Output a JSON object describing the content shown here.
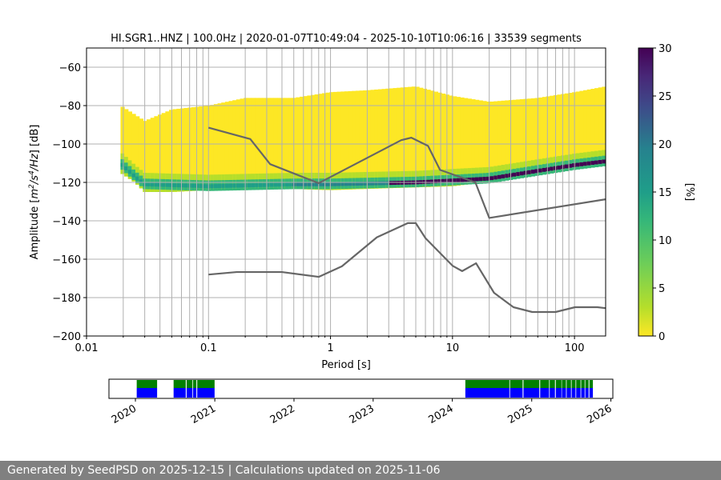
{
  "chart_data": [
    {
      "type": "heatmap",
      "title": "HI.SGR1..HNZ | 100.0Hz | 2020-01-07T10:49:04 - 2025-10-10T10:06:16 | 33539 segments",
      "xlabel": "Period [s]",
      "ylabel_parts": [
        "Amplitude [",
        "m",
        "2",
        "/",
        "s",
        "4",
        "/Hz",
        "] [dB]"
      ],
      "xscale": "log",
      "xlim": [
        0.01,
        180
      ],
      "ylim": [
        -200,
        -50
      ],
      "x_ticks": [
        0.01,
        0.1,
        1,
        10,
        100
      ],
      "x_tick_labels": [
        "0.01",
        "0.1",
        "1",
        "10",
        "100"
      ],
      "y_ticks": [
        -200,
        -180,
        -160,
        -140,
        -120,
        -100,
        -80,
        -60
      ],
      "y_tick_labels": [
        "−200",
        "−180",
        "−160",
        "−140",
        "−120",
        "−100",
        "−80",
        "−60"
      ],
      "grid": true,
      "colormap": "viridis_r",
      "colorbar": {
        "label": "[%]",
        "range": [
          0,
          30
        ],
        "ticks": [
          0,
          5,
          10,
          15,
          20,
          25,
          30
        ],
        "tick_labels": [
          "0",
          "5",
          "10",
          "15",
          "20",
          "25",
          "30"
        ]
      },
      "psd_density": {
        "period_start": 0.019,
        "period_end": 180,
        "upper_bound_db": [
          [
            0.019,
            -80
          ],
          [
            0.03,
            -88
          ],
          [
            0.05,
            -82
          ],
          [
            0.1,
            -80
          ],
          [
            0.2,
            -76
          ],
          [
            0.5,
            -76
          ],
          [
            1,
            -73
          ],
          [
            2,
            -72
          ],
          [
            5,
            -70
          ],
          [
            10,
            -75
          ],
          [
            20,
            -78
          ],
          [
            50,
            -76
          ],
          [
            100,
            -73
          ],
          [
            180,
            -70
          ]
        ],
        "lower_bound_db": [
          [
            0.019,
            -115
          ],
          [
            0.025,
            -120
          ],
          [
            0.03,
            -125
          ],
          [
            0.05,
            -125
          ],
          [
            0.1,
            -124
          ],
          [
            0.3,
            -123
          ],
          [
            1,
            -124
          ],
          [
            3,
            -123
          ],
          [
            10,
            -122
          ],
          [
            30,
            -118
          ],
          [
            100,
            -113
          ],
          [
            180,
            -110
          ]
        ],
        "mode_db": [
          [
            0.019,
            -110
          ],
          [
            0.025,
            -117
          ],
          [
            0.03,
            -121
          ],
          [
            0.1,
            -122
          ],
          [
            0.5,
            -121
          ],
          [
            1,
            -121
          ],
          [
            5,
            -120
          ],
          [
            10,
            -119
          ],
          [
            20,
            -118
          ],
          [
            50,
            -114
          ],
          [
            100,
            -111
          ],
          [
            180,
            -109
          ]
        ]
      },
      "series": [
        {
          "values_xy": [
            [
              0.1,
              -91.5
            ],
            [
              0.22,
              -97.4
            ],
            [
              0.32,
              -110.5
            ],
            [
              0.8,
              -120.4
            ],
            [
              3.8,
              -98.0
            ],
            [
              4.6,
              -96.7
            ],
            [
              6.3,
              -101.0
            ],
            [
              7.9,
              -113.5
            ],
            [
              15.4,
              -120.0
            ],
            [
              20,
              -138.5
            ],
            [
              180,
              -128.8
            ]
          ]
        },
        {
          "values_xy": [
            [
              0.1,
              -168.0
            ],
            [
              0.17,
              -166.7
            ],
            [
              0.4,
              -166.7
            ],
            [
              0.8,
              -169.2
            ],
            [
              1.24,
              -163.7
            ],
            [
              2.4,
              -148.6
            ],
            [
              4.3,
              -141.2
            ],
            [
              5.0,
              -141.2
            ],
            [
              6.0,
              -149.0
            ],
            [
              10,
              -163.4
            ],
            [
              12,
              -166.2
            ],
            [
              15.6,
              -162.1
            ],
            [
              21.9,
              -177.5
            ],
            [
              31.6,
              -185.0
            ],
            [
              45,
              -187.5
            ],
            [
              70,
              -187.5
            ],
            [
              101,
              -185.0
            ],
            [
              154,
              -185.0
            ],
            [
              180,
              -185.5
            ]
          ]
        }
      ]
    },
    {
      "type": "timeline",
      "xlim": [
        "2019-09-01",
        "2026-01-10"
      ],
      "tick_labels": [
        "2020",
        "2021",
        "2022",
        "2023",
        "2024",
        "2025",
        "2026"
      ],
      "green_color": "#008000",
      "blue_color": "#0000ff",
      "coverage_periods": [
        [
          "2020-01-07",
          "2020-04-10"
        ],
        [
          "2020-06-25",
          "2020-08-20"
        ],
        [
          "2020-08-24",
          "2020-09-20"
        ],
        [
          "2020-09-23",
          "2020-10-08"
        ],
        [
          "2020-10-12",
          "2020-12-31"
        ],
        [
          "2024-03-01",
          "2024-09-20"
        ],
        [
          "2024-09-23",
          "2024-11-20"
        ],
        [
          "2024-11-24",
          "2025-02-05"
        ],
        [
          "2025-02-09",
          "2025-03-22"
        ],
        [
          "2025-03-25",
          "2025-04-18"
        ],
        [
          "2025-04-22",
          "2025-05-18"
        ],
        [
          "2025-05-20",
          "2025-06-08"
        ],
        [
          "2025-06-11",
          "2025-07-01"
        ],
        [
          "2025-07-04",
          "2025-07-22"
        ],
        [
          "2025-07-25",
          "2025-08-14"
        ],
        [
          "2025-08-17",
          "2025-09-02"
        ],
        [
          "2025-09-05",
          "2025-09-20"
        ],
        [
          "2025-09-24",
          "2025-10-10"
        ]
      ]
    }
  ],
  "footer": {
    "text": "Generated by SeedPSD on 2025-12-15 | Calculations updated on 2025-11-06"
  },
  "colors": {
    "grid": "#b0b0b0",
    "noise_model_line": "#666666",
    "footer_bg": "#808080"
  }
}
